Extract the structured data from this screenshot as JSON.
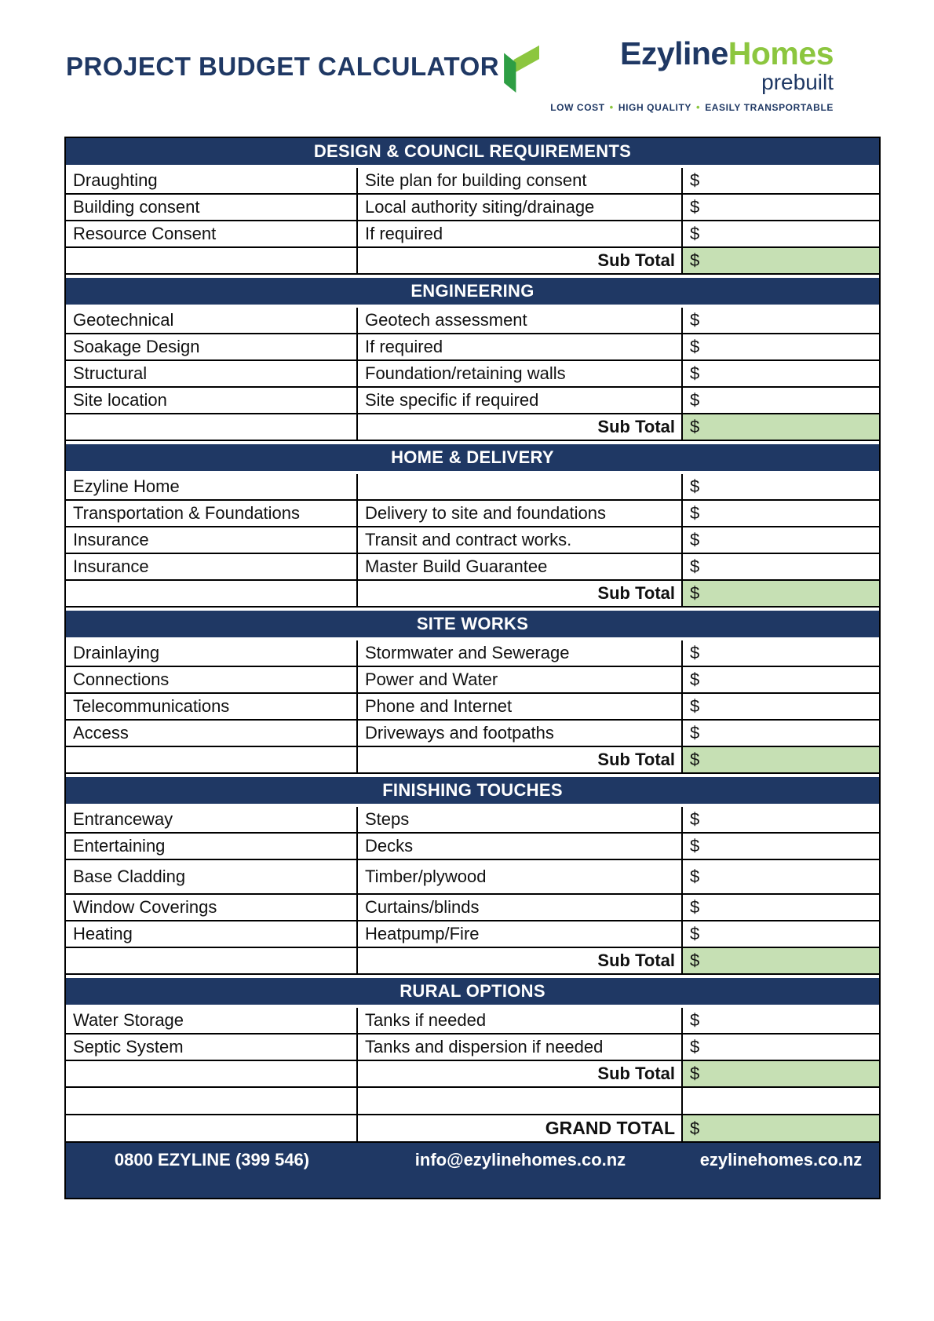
{
  "colors": {
    "navy": "#1f3864",
    "subtotal_green": "#c6e0b4",
    "logo_green_light": "#8cc63f",
    "logo_green_dark": "#2e9e44",
    "text_black": "#111111"
  },
  "header": {
    "title": "PROJECT BUDGET CALCULATOR"
  },
  "logo": {
    "brand_primary": "Ezyline",
    "brand_secondary": "Homes",
    "subtitle": "prebuilt",
    "tagline_items": [
      "LOW COST",
      "HIGH QUALITY",
      "EASILY TRANSPORTABLE"
    ],
    "checkmark_icon": "ezyline-checkmark"
  },
  "table": {
    "currency_symbol": "$",
    "sub_total_label": "Sub Total",
    "grand_total_label": "GRAND TOTAL",
    "grand_total_amount": "",
    "sections": [
      {
        "header": "DESIGN & COUNCIL REQUIREMENTS",
        "rows": [
          {
            "item": "Draughting",
            "description": "Site plan for building consent",
            "amount": ""
          },
          {
            "item": "Building consent",
            "description": "Local authority siting/drainage",
            "amount": ""
          },
          {
            "item": "Resource Consent",
            "description": "If required",
            "amount": ""
          }
        ],
        "sub_total_amount": ""
      },
      {
        "header": "ENGINEERING",
        "rows": [
          {
            "item": "Geotechnical",
            "description": "Geotech assessment",
            "amount": ""
          },
          {
            "item": "Soakage Design",
            "description": "If required",
            "amount": ""
          },
          {
            "item": "Structural",
            "description": "Foundation/retaining walls",
            "amount": ""
          },
          {
            "item": "Site location",
            "description": "Site specific if required",
            "amount": ""
          }
        ],
        "sub_total_amount": ""
      },
      {
        "header": "HOME & DELIVERY",
        "rows": [
          {
            "item": "Ezyline Home",
            "description": "",
            "amount": ""
          },
          {
            "item": "Transportation & Foundations",
            "description": "Delivery to site and foundations",
            "amount": ""
          },
          {
            "item": "Insurance",
            "description": "Transit and contract works.",
            "amount": ""
          },
          {
            "item": "Insurance",
            "description": "Master Build Guarantee",
            "amount": ""
          }
        ],
        "sub_total_amount": ""
      },
      {
        "header": "SITE WORKS",
        "rows": [
          {
            "item": "Drainlaying",
            "description": "Stormwater and Sewerage",
            "amount": ""
          },
          {
            "item": "Connections",
            "description": "Power and Water",
            "amount": ""
          },
          {
            "item": "Telecommunications",
            "description": "Phone and Internet",
            "amount": ""
          },
          {
            "item": "Access",
            "description": "Driveways and footpaths",
            "amount": ""
          }
        ],
        "sub_total_amount": ""
      },
      {
        "header": "FINISHING TOUCHES",
        "rows": [
          {
            "item": "Entranceway",
            "description": "Steps",
            "amount": ""
          },
          {
            "item": "Entertaining",
            "description": "Decks",
            "amount": ""
          },
          {
            "item": "Base Cladding",
            "description": "Timber/plywood",
            "amount": ""
          },
          {
            "item": "Window Coverings",
            "description": "Curtains/blinds",
            "amount": ""
          },
          {
            "item": "Heating",
            "description": "Heatpump/Fire",
            "amount": ""
          }
        ],
        "sub_total_amount": ""
      },
      {
        "header": "RURAL OPTIONS",
        "rows": [
          {
            "item": "Water Storage",
            "description": "Tanks if needed",
            "amount": ""
          },
          {
            "item": "Septic System",
            "description": "Tanks and dispersion if needed",
            "amount": ""
          }
        ],
        "sub_total_amount": ""
      }
    ]
  },
  "footer": {
    "phone": "0800 EZYLINE (399 546)",
    "email": "info@ezylinehomes.co.nz",
    "website": "ezylinehomes.co.nz"
  }
}
